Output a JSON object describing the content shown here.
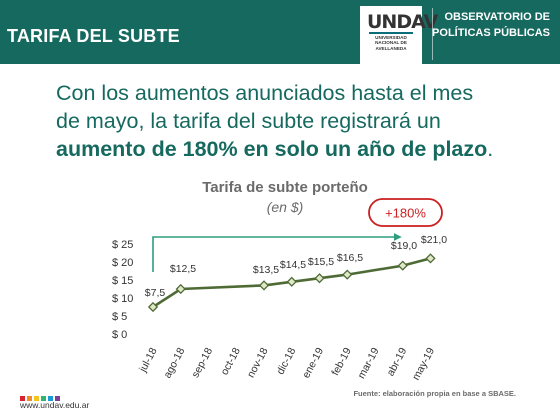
{
  "header": {
    "title": "TARIFA DEL SUBTE",
    "logo_text": "UNDAV",
    "logo_subtext": [
      "UNIVERSIDAD",
      "NACIONAL DE",
      "AVELLANEDA"
    ],
    "org_line1": "OBSERVATORIO DE",
    "org_line2": "POLÍTICAS PÚBLICAS"
  },
  "headline": {
    "line1": "Con los aumentos anunciados hasta el mes",
    "line2": "de mayo, la tarifa del subte registrará un",
    "bold": "aumento de 180% en solo un año de plazo",
    "end": "."
  },
  "chart_data": {
    "type": "line",
    "title": "Tarifa de subte porteño",
    "subtitle": "(en $)",
    "categories": [
      "jul-18",
      "ago-18",
      "sep-18",
      "oct-18",
      "nov-18",
      "dic-18",
      "ene-19",
      "feb-19",
      "mar-19",
      "abr-19",
      "may-19"
    ],
    "points": [
      {
        "x": "jul-18",
        "y": 7.5,
        "label": "$7,5"
      },
      {
        "x": "ago-18",
        "y": 12.5,
        "label": "$12,5"
      },
      {
        "x": "nov-18",
        "y": 13.5,
        "label": "$13,5"
      },
      {
        "x": "dic-18",
        "y": 14.5,
        "label": "$14,5"
      },
      {
        "x": "ene-19",
        "y": 15.5,
        "label": "$15,5"
      },
      {
        "x": "feb-19",
        "y": 16.5,
        "label": "$16,5"
      },
      {
        "x": "abr-19",
        "y": 19.0,
        "label": "$19,0"
      },
      {
        "x": "may-19",
        "y": 21.0,
        "label": "$21,0"
      }
    ],
    "y_ticks": [
      {
        "value": 0,
        "label": "$ 0"
      },
      {
        "value": 5,
        "label": "$ 5"
      },
      {
        "value": 10,
        "label": "$ 10"
      },
      {
        "value": 15,
        "label": "$ 15"
      },
      {
        "value": 20,
        "label": "$ 20"
      },
      {
        "value": 25,
        "label": "$ 25"
      }
    ],
    "ylim": [
      0,
      25
    ],
    "grid": false,
    "line_color": "#4f6b35",
    "marker_fill": "#dfe8c8",
    "annotation": {
      "text": "+180%",
      "from": "jul-18",
      "to": "abr-19",
      "arrow_color": "#2e9e7f",
      "box_color": "#cc1f1f"
    }
  },
  "footer": {
    "url": "www.undav.edu.ar",
    "source": "Fuente: elaboración propia en base a SBASE.",
    "dot_colors": [
      "#d9262e",
      "#f28c28",
      "#f2c51f",
      "#2bb673",
      "#1a9ad6",
      "#7b3f98"
    ]
  },
  "colors": {
    "brand": "#16695f",
    "text_gray": "#6b6b6b"
  }
}
